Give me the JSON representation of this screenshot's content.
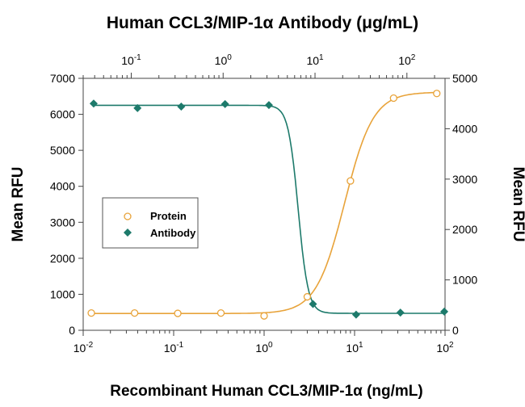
{
  "chart_data": {
    "type": "scatter",
    "title_top": "Human CCL3/MIP-1α Antibody (μg/mL)",
    "xlabel": "Recombinant Human CCL3/MIP-1α (ng/mL)",
    "ylabel_left": "Mean RFU",
    "ylabel_right": "Mean RFU",
    "x_scale": "log",
    "xlim": [
      0.01,
      100
    ],
    "x_top_scale": "log",
    "x_top_lim": [
      0.03,
      260
    ],
    "ylim_left": [
      0,
      7000
    ],
    "ylim_right": [
      0,
      5000
    ],
    "x_ticks": [
      {
        "base": "10",
        "exp": "-2",
        "value": 0.01
      },
      {
        "base": "10",
        "exp": "-1",
        "value": 0.1
      },
      {
        "base": "10",
        "exp": "0",
        "value": 1
      },
      {
        "base": "10",
        "exp": "1",
        "value": 10
      },
      {
        "base": "10",
        "exp": "2",
        "value": 100
      }
    ],
    "x_top_ticks": [
      {
        "base": "10",
        "exp": "-1",
        "value": 0.1
      },
      {
        "base": "10",
        "exp": "0",
        "value": 1
      },
      {
        "base": "10",
        "exp": "1",
        "value": 10
      },
      {
        "base": "10",
        "exp": "2",
        "value": 100
      }
    ],
    "y_left_ticks": [
      "0",
      "1000",
      "2000",
      "3000",
      "4000",
      "5000",
      "6000",
      "7000"
    ],
    "y_right_ticks": [
      "0",
      "1000",
      "2000",
      "3000",
      "4000",
      "5000"
    ],
    "grid": false,
    "legend_position": "center-left",
    "series": [
      {
        "name": "Protein",
        "axis": "bottom-left",
        "marker": "open-circle",
        "color": "#e8a33a",
        "x": [
          0.0123,
          0.037,
          0.111,
          0.333,
          1.0,
          3.0,
          9.0,
          27.0,
          81.0
        ],
        "y": [
          480,
          480,
          470,
          480,
          400,
          930,
          4150,
          6450,
          6580
        ]
      },
      {
        "name": "Antibody",
        "axis": "top-right",
        "marker": "filled-diamond",
        "color": "#1d7a6b",
        "x": [
          0.039,
          0.117,
          0.35,
          1.05,
          3.15,
          9.5,
          28,
          85,
          255
        ],
        "y": [
          4500,
          4410,
          4440,
          4490,
          4470,
          520,
          310,
          350,
          370
        ]
      }
    ]
  }
}
